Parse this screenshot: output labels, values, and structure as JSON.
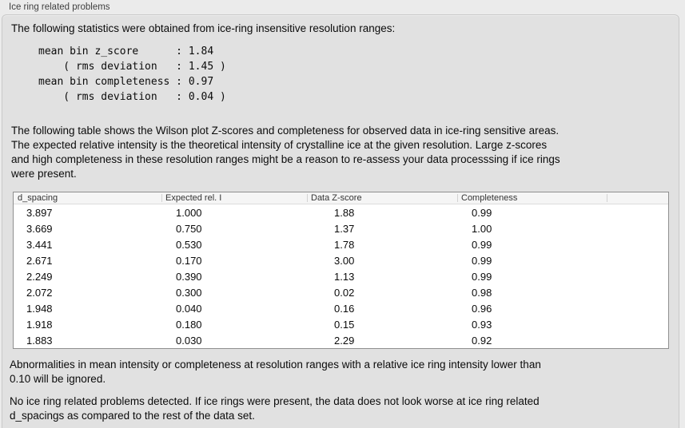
{
  "panel": {
    "title": "Ice ring related problems",
    "intro": "The following statistics were obtained from ice-ring insensitive resolution ranges:",
    "stats_block": "mean bin z_score      : 1.84\n    ( rms deviation   : 1.45 )\nmean bin completeness : 0.97\n    ( rms deviation   : 0.04 )",
    "table_description": "The following table shows the Wilson plot Z-scores and completeness for observed data in ice-ring sensitive areas.\nThe expected relative intensity is the theoretical intensity of crystalline ice at the given resolution. Large z-scores\nand high completeness in these resolution ranges might be a reason to re-assess your data processsing if ice rings\nwere present.",
    "note": "Abnormalities in mean intensity or completeness at resolution ranges with a relative ice ring intensity lower than\n0.10 will be ignored.",
    "conclusion": "No ice ring related problems detected. If ice rings were present, the data does not look worse at ice ring related\nd_spacings as compared to the rest of the data set."
  },
  "table": {
    "columns": [
      "d_spacing",
      "Expected rel. I",
      "Data Z-score",
      "Completeness",
      ""
    ],
    "rows": [
      [
        "3.897",
        "1.000",
        "1.88",
        "0.99"
      ],
      [
        "3.669",
        "0.750",
        "1.37",
        "1.00"
      ],
      [
        "3.441",
        "0.530",
        "1.78",
        "0.99"
      ],
      [
        "2.671",
        "0.170",
        "3.00",
        "0.99"
      ],
      [
        "2.249",
        "0.390",
        "1.13",
        "0.99"
      ],
      [
        "2.072",
        "0.300",
        "0.02",
        "0.98"
      ],
      [
        "1.948",
        "0.040",
        "0.16",
        "0.96"
      ],
      [
        "1.918",
        "0.180",
        "0.15",
        "0.93"
      ],
      [
        "1.883",
        "0.030",
        "2.29",
        "0.92"
      ]
    ]
  },
  "colors": {
    "window_background": "#ebebeb",
    "groupbox_background": "#e1e1e1",
    "groupbox_border": "#c9c9c9",
    "table_background": "#ffffff",
    "table_border": "#8f8f8f",
    "header_background": "#f5f5f5",
    "header_separator": "#d2d2d2",
    "header_bottom_border": "#dcdcdc",
    "text": "#0b0b0b",
    "label_text": "#3f3f3f"
  }
}
